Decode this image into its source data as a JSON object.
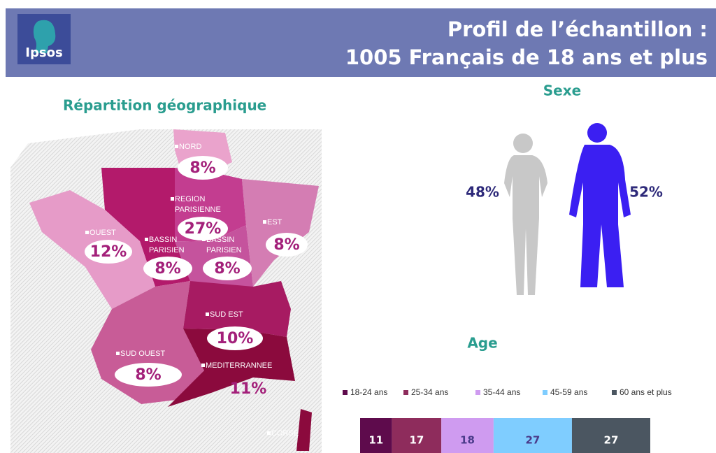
{
  "header": {
    "logo": "Ipsos",
    "title": [
      "Profil de l’échantillon :",
      "1005 Français de 18 ans et plus"
    ]
  },
  "geo": {
    "title": "Répartition géographique",
    "regions": [
      {
        "name": [
          "NORD"
        ],
        "value": "8%"
      },
      {
        "name": [
          "REGION",
          "PARISIENNE"
        ],
        "value": "27%"
      },
      {
        "name": [
          "EST"
        ],
        "value": "8%"
      },
      {
        "name": [
          "OUEST"
        ],
        "value": "12%"
      },
      {
        "name": [
          "BASSIN",
          "PARISIEN"
        ],
        "value": "8%"
      },
      {
        "name": [
          "BASSIN",
          "PARISIEN"
        ],
        "value": "8%"
      },
      {
        "name": [
          "SUD EST"
        ],
        "value": "10%"
      },
      {
        "name": [
          "SUD OUEST"
        ],
        "value": "8%"
      },
      {
        "name": [
          "MEDITERRANNEE"
        ],
        "value": "11%"
      },
      {
        "name": [
          "CORSE"
        ]
      }
    ]
  },
  "sexe": {
    "title": "Sexe",
    "women": "48%",
    "men": "52%"
  },
  "chart_data": {
    "type": "bar",
    "stacked": true,
    "orientation": "horizontal",
    "title": "Age",
    "categories": [
      null
    ],
    "series": [
      {
        "name": "18-24 ans",
        "color": "#5e0b4c",
        "values": [
          11
        ]
      },
      {
        "name": "25-34 ans",
        "color": "#8e2c5c",
        "values": [
          17
        ]
      },
      {
        "name": "35-44 ans",
        "color": "#cf9bf0",
        "values": [
          18
        ]
      },
      {
        "name": "45-59 ans",
        "color": "#7fcdff",
        "values": [
          27
        ]
      },
      {
        "name": "60 ans et plus",
        "color": "#4b5661",
        "values": [
          27
        ]
      }
    ],
    "xlim": [
      0,
      100
    ]
  }
}
